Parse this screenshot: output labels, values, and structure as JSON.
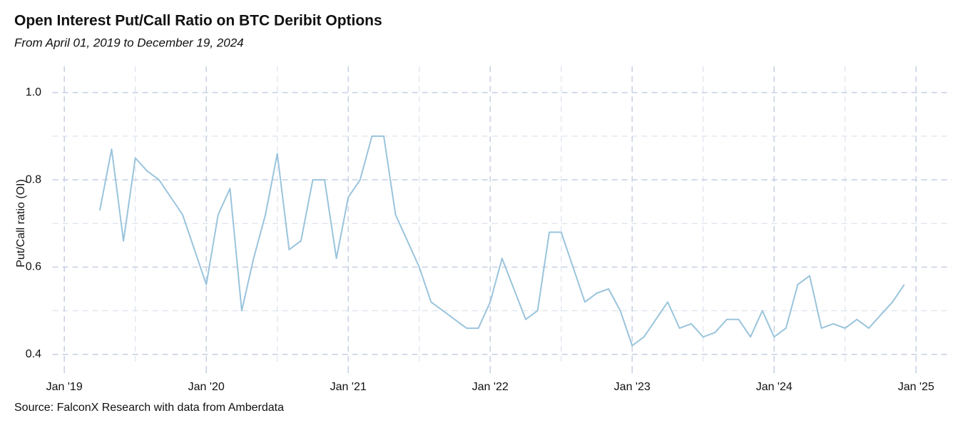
{
  "chart_data": {
    "type": "line",
    "title": "Open Interest Put/Call Ratio on BTC Deribit Options",
    "subtitle": "From April 01, 2019 to December 19, 2024",
    "y_label": "Put/Call ratio (OI)",
    "source": "Source: FalconX Research with data from Amberdata",
    "color": "#9ac4dc",
    "grid": true,
    "x": [
      "2019-04",
      "2019-05",
      "2019-06",
      "2019-07",
      "2019-08",
      "2019-09",
      "2019-10",
      "2019-11",
      "2019-12",
      "2020-01",
      "2020-02",
      "2020-03",
      "2020-04",
      "2020-05",
      "2020-06",
      "2020-07",
      "2020-08",
      "2020-09",
      "2020-10",
      "2020-11",
      "2020-12",
      "2021-01",
      "2021-02",
      "2021-03",
      "2021-04",
      "2021-05",
      "2021-06",
      "2021-07",
      "2021-08",
      "2021-09",
      "2021-10",
      "2021-11",
      "2021-12",
      "2022-01",
      "2022-02",
      "2022-03",
      "2022-04",
      "2022-05",
      "2022-06",
      "2022-07",
      "2022-08",
      "2022-09",
      "2022-10",
      "2022-11",
      "2022-12",
      "2023-01",
      "2023-02",
      "2023-03",
      "2023-04",
      "2023-05",
      "2023-06",
      "2023-07",
      "2023-08",
      "2023-09",
      "2023-10",
      "2023-11",
      "2023-12",
      "2024-01",
      "2024-02",
      "2024-03",
      "2024-04",
      "2024-05",
      "2024-06",
      "2024-07",
      "2024-08",
      "2024-09",
      "2024-10",
      "2024-11",
      "2024-12"
    ],
    "values": [
      0.73,
      0.87,
      0.66,
      0.85,
      0.82,
      0.8,
      0.76,
      0.72,
      0.64,
      0.56,
      0.72,
      0.78,
      0.5,
      0.62,
      0.72,
      0.86,
      0.64,
      0.66,
      0.8,
      0.8,
      0.62,
      0.76,
      0.8,
      0.9,
      0.9,
      0.72,
      0.66,
      0.6,
      0.52,
      0.5,
      0.48,
      0.46,
      0.46,
      0.52,
      0.62,
      0.55,
      0.48,
      0.5,
      0.68,
      0.68,
      0.6,
      0.52,
      0.54,
      0.55,
      0.5,
      0.42,
      0.44,
      0.48,
      0.52,
      0.46,
      0.47,
      0.44,
      0.45,
      0.48,
      0.48,
      0.44,
      0.5,
      0.44,
      0.46,
      0.56,
      0.58,
      0.46,
      0.47,
      0.46,
      0.48,
      0.46,
      0.49,
      0.52,
      0.56
    ],
    "xlim": [
      "2018-12",
      "2025-04"
    ],
    "xticks": [
      {
        "value": "2019-01",
        "label": "Jan '19"
      },
      {
        "value": "2020-01",
        "label": "Jan '20"
      },
      {
        "value": "2021-01",
        "label": "Jan '21"
      },
      {
        "value": "2022-01",
        "label": "Jan '22"
      },
      {
        "value": "2023-01",
        "label": "Jan '23"
      },
      {
        "value": "2024-01",
        "label": "Jan '24"
      },
      {
        "value": "2025-01",
        "label": "Jan '25"
      }
    ],
    "xminor": [
      "2019-07",
      "2020-07",
      "2021-07",
      "2022-07",
      "2023-07",
      "2024-07"
    ],
    "ylim": [
      0.38,
      1.06
    ],
    "yticks": [
      0.4,
      0.6,
      0.8,
      {
        "value": 1,
        "label": "1.0"
      }
    ],
    "yminor": [
      0.5,
      0.7,
      0.9
    ]
  }
}
